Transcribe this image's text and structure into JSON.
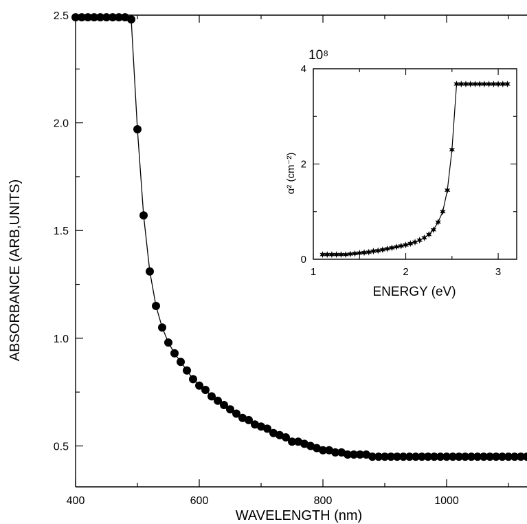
{
  "chart_data": [
    {
      "type": "line",
      "xlabel": "WAVELENGTH (nm)",
      "ylabel": "ABSORBANCE (ARB,UNITS)",
      "xlim": [
        400,
        1130
      ],
      "ylim": [
        0.31,
        2.5
      ],
      "x_ticks": [
        "400",
        "600",
        "800",
        "1000"
      ],
      "y_ticks": [
        "0.5",
        "1.0",
        "1.5",
        "2.0",
        "2.5"
      ],
      "grid": false,
      "marker": "filled-circle",
      "series": [
        {
          "x": [
            400,
            410,
            420,
            430,
            440,
            450,
            460,
            470,
            480,
            490,
            500,
            510,
            520,
            530,
            540,
            550,
            560,
            570,
            580,
            590,
            600,
            610,
            620,
            630,
            640,
            650,
            660,
            670,
            680,
            690,
            700,
            710,
            720,
            730,
            740,
            750,
            760,
            770,
            780,
            790,
            800,
            810,
            820,
            830,
            840,
            850,
            860,
            870,
            880,
            890,
            900,
            910,
            920,
            930,
            940,
            950,
            960,
            970,
            980,
            990,
            1000,
            1010,
            1020,
            1030,
            1040,
            1050,
            1060,
            1070,
            1080,
            1090,
            1100,
            1110,
            1120,
            1130
          ],
          "y": [
            2.49,
            2.49,
            2.49,
            2.49,
            2.49,
            2.49,
            2.49,
            2.49,
            2.49,
            2.48,
            1.97,
            1.57,
            1.31,
            1.15,
            1.05,
            0.98,
            0.93,
            0.89,
            0.85,
            0.81,
            0.78,
            0.76,
            0.73,
            0.71,
            0.69,
            0.67,
            0.65,
            0.63,
            0.62,
            0.6,
            0.59,
            0.58,
            0.56,
            0.55,
            0.54,
            0.52,
            0.52,
            0.51,
            0.5,
            0.49,
            0.48,
            0.48,
            0.47,
            0.47,
            0.46,
            0.46,
            0.46,
            0.46,
            0.45,
            0.45,
            0.45,
            0.45,
            0.45,
            0.45,
            0.45,
            0.45,
            0.45,
            0.45,
            0.45,
            0.45,
            0.45,
            0.45,
            0.45,
            0.45,
            0.45,
            0.45,
            0.45,
            0.45,
            0.45,
            0.45,
            0.45,
            0.45,
            0.45,
            0.45
          ]
        }
      ]
    },
    {
      "type": "line",
      "xlabel": "ENERGY (eV)",
      "ylabel": "α² (cm⁻²)",
      "scale_label": "10⁸",
      "xlim": [
        1,
        3.2
      ],
      "ylim": [
        0,
        4
      ],
      "x_ticks": [
        "1",
        "2",
        "3"
      ],
      "y_ticks": [
        "0",
        "2",
        "4"
      ],
      "grid": false,
      "legend": "none",
      "marker": "star",
      "series": [
        {
          "x": [
            1.1,
            1.15,
            1.2,
            1.25,
            1.3,
            1.35,
            1.4,
            1.45,
            1.5,
            1.55,
            1.6,
            1.65,
            1.7,
            1.75,
            1.8,
            1.85,
            1.9,
            1.95,
            2.0,
            2.05,
            2.1,
            2.15,
            2.2,
            2.25,
            2.3,
            2.35,
            2.4,
            2.45,
            2.5,
            2.55,
            2.6,
            2.65,
            2.7,
            2.75,
            2.8,
            2.85,
            2.9,
            2.95,
            3.0,
            3.05,
            3.1
          ],
          "y": [
            0.1,
            0.1,
            0.1,
            0.1,
            0.1,
            0.1,
            0.11,
            0.12,
            0.13,
            0.14,
            0.15,
            0.17,
            0.18,
            0.2,
            0.22,
            0.24,
            0.26,
            0.28,
            0.3,
            0.33,
            0.36,
            0.4,
            0.45,
            0.52,
            0.62,
            0.78,
            1.0,
            1.45,
            2.3,
            3.68,
            3.68,
            3.68,
            3.68,
            3.68,
            3.68,
            3.68,
            3.68,
            3.68,
            3.68,
            3.68,
            3.68
          ]
        }
      ]
    }
  ]
}
